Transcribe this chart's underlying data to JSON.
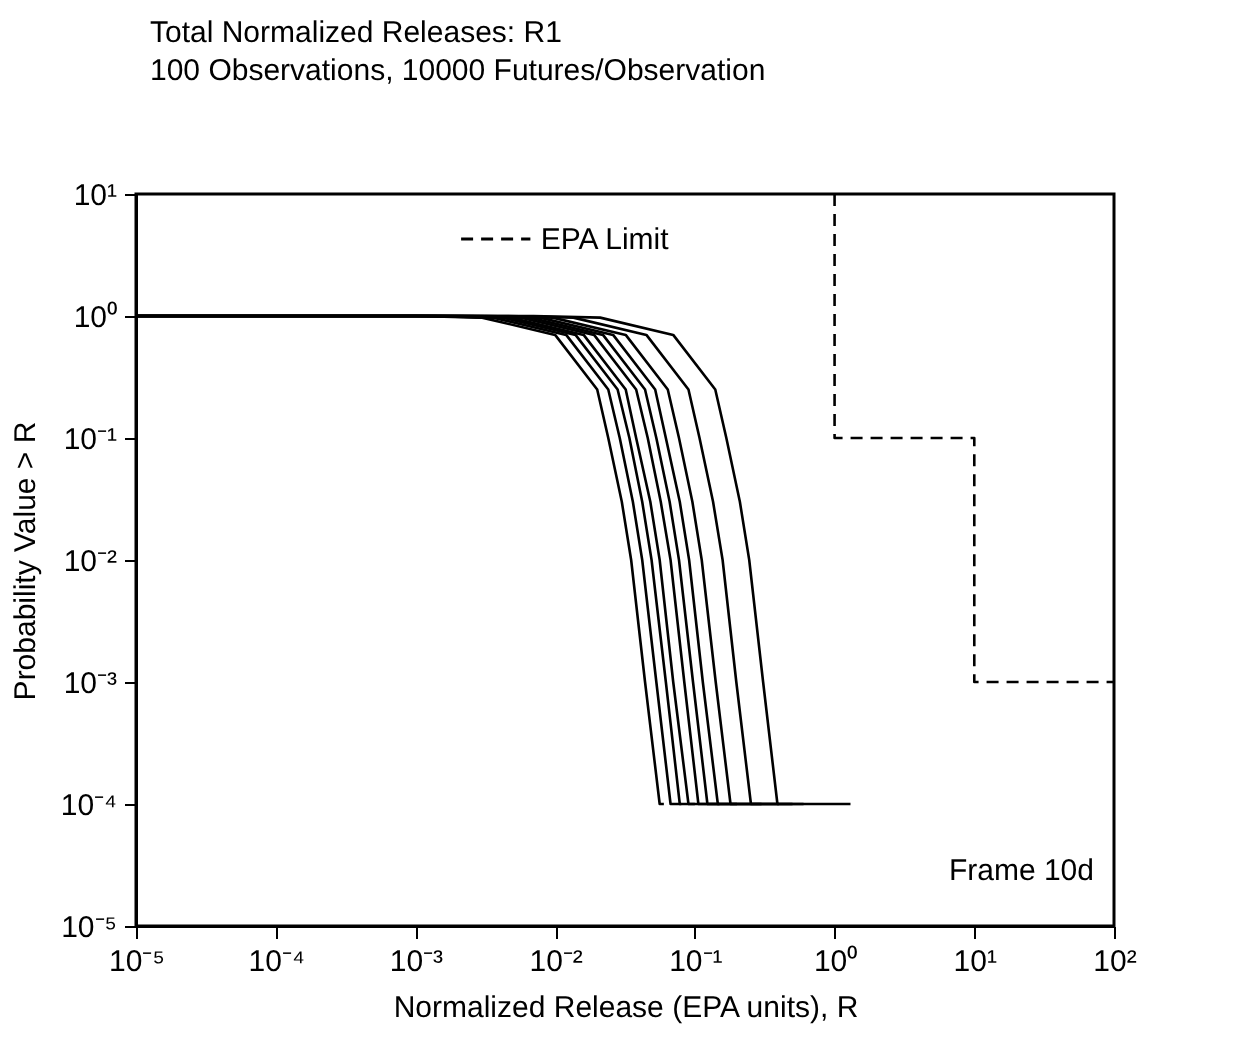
{
  "chart_data": {
    "type": "line",
    "title": "Total Normalized Releases:  R1",
    "subtitle": "100 Observations, 10000 Futures/Observation",
    "xlabel": "Normalized Release (EPA units), R",
    "ylabel": "Probability Value > R",
    "log": "xy",
    "xlim": [
      1e-05,
      100
    ],
    "ylim": [
      1e-05,
      10
    ],
    "xticks": [
      {
        "value": 1e-05,
        "label": "10⁻⁵"
      },
      {
        "value": 0.0001,
        "label": "10⁻⁴"
      },
      {
        "value": 0.001,
        "label": "10⁻³"
      },
      {
        "value": 0.01,
        "label": "10⁻²"
      },
      {
        "value": 0.1,
        "label": "10⁻¹"
      },
      {
        "value": 1,
        "label": "10⁰"
      },
      {
        "value": 10,
        "label": "10¹"
      },
      {
        "value": 100,
        "label": "10²"
      }
    ],
    "yticks": [
      {
        "value": 1e-05,
        "label": "10⁻⁵"
      },
      {
        "value": 0.0001,
        "label": "10⁻⁴"
      },
      {
        "value": 0.001,
        "label": "10⁻³"
      },
      {
        "value": 0.01,
        "label": "10⁻²"
      },
      {
        "value": 0.1,
        "label": "10⁻¹"
      },
      {
        "value": 1,
        "label": "10⁰"
      },
      {
        "value": 10,
        "label": "10¹"
      }
    ],
    "legend": "top",
    "annotations": [
      "Frame 10d"
    ],
    "series": [
      {
        "color": "#000000",
        "x": [
          1e-05,
          0.001,
          0.003,
          0.01,
          0.02,
          0.024,
          0.03,
          0.035,
          0.044,
          0.056,
          0.06
        ],
        "values": [
          1,
          1,
          0.97,
          0.7,
          0.25,
          0.1,
          0.03,
          0.01,
          0.001,
          0.0001,
          0.0001
        ]
      },
      {
        "color": "#000000",
        "x": [
          1e-05,
          0.0012,
          0.0036,
          0.012,
          0.024,
          0.029,
          0.036,
          0.042,
          0.053,
          0.067,
          0.08
        ],
        "values": [
          1,
          1,
          0.97,
          0.7,
          0.25,
          0.1,
          0.03,
          0.01,
          0.001,
          0.0001,
          0.0001
        ]
      },
      {
        "color": "#000000",
        "x": [
          1e-05,
          0.0014,
          0.0042,
          0.014,
          0.028,
          0.034,
          0.042,
          0.049,
          0.062,
          0.078,
          0.1
        ],
        "values": [
          1,
          1,
          0.97,
          0.7,
          0.25,
          0.1,
          0.03,
          0.01,
          0.001,
          0.0001,
          0.0001
        ]
      },
      {
        "color": "#000000",
        "x": [
          1e-05,
          0.0016,
          0.0048,
          0.016,
          0.032,
          0.038,
          0.048,
          0.056,
          0.07,
          0.09,
          0.15
        ],
        "values": [
          1,
          1,
          0.97,
          0.7,
          0.25,
          0.1,
          0.03,
          0.01,
          0.001,
          0.0001,
          0.0001
        ]
      },
      {
        "color": "#000000",
        "x": [
          1e-05,
          0.0019,
          0.0057,
          0.019,
          0.038,
          0.046,
          0.057,
          0.067,
          0.084,
          0.106,
          0.2
        ],
        "values": [
          1,
          1,
          0.97,
          0.7,
          0.25,
          0.1,
          0.03,
          0.01,
          0.001,
          0.0001,
          0.0001
        ]
      },
      {
        "color": "#000000",
        "x": [
          1e-05,
          0.0022,
          0.0066,
          0.022,
          0.044,
          0.053,
          0.066,
          0.077,
          0.097,
          0.123,
          0.3
        ],
        "values": [
          1,
          1,
          0.97,
          0.7,
          0.25,
          0.1,
          0.03,
          0.01,
          0.001,
          0.0001,
          0.0001
        ]
      },
      {
        "color": "#000000",
        "x": [
          1e-05,
          0.0026,
          0.0078,
          0.026,
          0.052,
          0.062,
          0.078,
          0.091,
          0.114,
          0.146,
          0.4
        ],
        "values": [
          1,
          1,
          0.97,
          0.7,
          0.25,
          0.1,
          0.03,
          0.01,
          0.001,
          0.0001,
          0.0001
        ]
      },
      {
        "color": "#000000",
        "x": [
          1e-05,
          0.0032,
          0.0096,
          0.032,
          0.064,
          0.077,
          0.096,
          0.112,
          0.141,
          0.18,
          0.5
        ],
        "values": [
          1,
          1,
          0.97,
          0.7,
          0.25,
          0.1,
          0.03,
          0.01,
          0.001,
          0.0001,
          0.0001
        ]
      },
      {
        "color": "#000000",
        "x": [
          1e-05,
          0.0045,
          0.0135,
          0.045,
          0.09,
          0.108,
          0.135,
          0.158,
          0.198,
          0.252,
          0.6
        ],
        "values": [
          1,
          1,
          0.97,
          0.7,
          0.25,
          0.1,
          0.03,
          0.01,
          0.001,
          0.0001,
          0.0001
        ]
      },
      {
        "color": "#000000",
        "x": [
          1e-05,
          0.007,
          0.021,
          0.07,
          0.14,
          0.168,
          0.21,
          0.245,
          0.308,
          0.39,
          1.3
        ],
        "values": [
          1,
          1,
          0.97,
          0.7,
          0.25,
          0.1,
          0.03,
          0.01,
          0.001,
          0.0001,
          0.0001
        ]
      },
      {
        "name": "EPA Limit",
        "color": "#000000",
        "line_style": "dashed",
        "x": [
          1,
          1,
          10,
          10,
          100
        ],
        "values": [
          10,
          0.1,
          0.1,
          0.001,
          0.001
        ]
      }
    ]
  }
}
